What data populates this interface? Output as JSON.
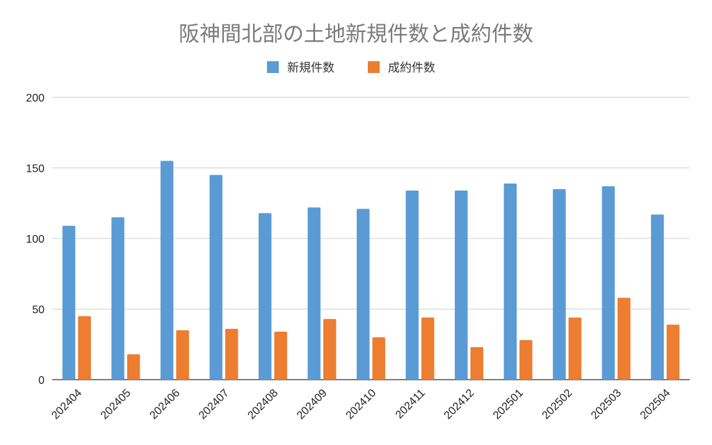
{
  "chart_data": {
    "type": "bar",
    "title": "阪神間北部の土地新規件数と成約件数",
    "xlabel": "",
    "ylabel": "",
    "categories": [
      "202404",
      "202405",
      "202406",
      "202407",
      "202408",
      "202409",
      "202410",
      "202411",
      "202412",
      "202501",
      "202502",
      "202503",
      "202504"
    ],
    "series": [
      {
        "name": "新規件数",
        "color": "#5b9bd5",
        "values": [
          109,
          115,
          155,
          145,
          118,
          122,
          121,
          134,
          134,
          139,
          135,
          137,
          117
        ]
      },
      {
        "name": "成約件数",
        "color": "#ed7d31",
        "values": [
          45,
          18,
          35,
          36,
          34,
          43,
          30,
          44,
          23,
          28,
          44,
          58,
          39
        ]
      }
    ],
    "ylim": [
      0,
      200
    ],
    "yticks": [
      0,
      50,
      100,
      150,
      200
    ],
    "grid": true,
    "legend_position": "top-center"
  }
}
